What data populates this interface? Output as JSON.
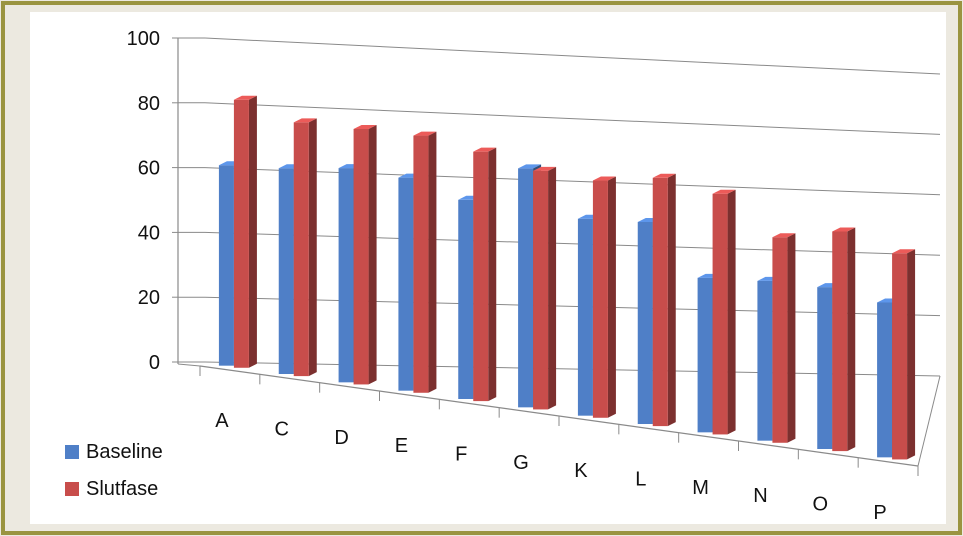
{
  "colors": {
    "frame_border": "#9a9440",
    "background": "#ece9e0",
    "plot_background": "#ffffff",
    "grid": "#8a8a8a",
    "series_colors": [
      "#4f7fc7",
      "#c84d4b"
    ]
  },
  "chart_data": {
    "type": "bar",
    "subtype": "clustered-3d",
    "title": "",
    "xlabel": "",
    "ylabel": "",
    "ylim": [
      0,
      100
    ],
    "yticks": [
      0,
      20,
      40,
      60,
      80,
      100
    ],
    "grid": true,
    "legend_position": "bottom-left",
    "categories": [
      "A",
      "C",
      "D",
      "E",
      "F",
      "G",
      "K",
      "L",
      "M",
      "N",
      "O",
      "P"
    ],
    "series": [
      {
        "name": "Baseline",
        "values": [
          62,
          64,
          67,
          67,
          63,
          76,
          63,
          65,
          50,
          52,
          53,
          51
        ]
      },
      {
        "name": "Slutfase",
        "values": [
          83,
          79,
          80,
          81,
          79,
          76,
          76,
          80,
          78,
          67,
          72,
          68
        ]
      }
    ]
  }
}
